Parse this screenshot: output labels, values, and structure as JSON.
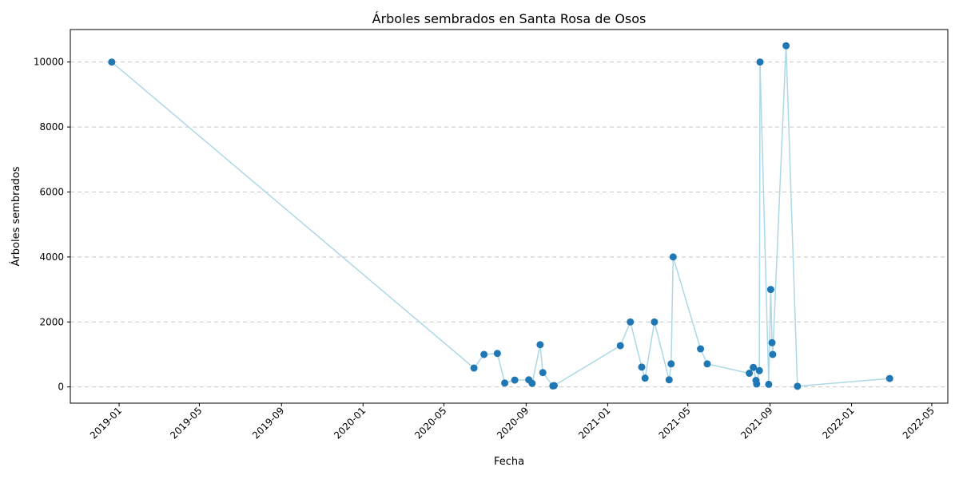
{
  "chart_data": {
    "type": "line",
    "title": "Árboles sembrados en Santa Rosa de Osos",
    "xlabel": "Fecha",
    "ylabel": "Árboles sembrados",
    "xlim": [
      "2018-10-20",
      "2022-05-25"
    ],
    "ylim": [
      -500,
      11000
    ],
    "x_ticks": [
      "2019-01",
      "2019-05",
      "2019-09",
      "2020-01",
      "2020-05",
      "2020-09",
      "2021-01",
      "2021-05",
      "2021-09",
      "2022-01",
      "2022-05"
    ],
    "y_ticks": [
      0,
      2000,
      4000,
      6000,
      8000,
      10000
    ],
    "grid": "y-dashed",
    "legend": "none",
    "colors": {
      "line": "#add8e6",
      "marker": "#1f77b4"
    },
    "points": [
      {
        "x": "2018-12-21",
        "y": 10000
      },
      {
        "x": "2020-06-15",
        "y": 580
      },
      {
        "x": "2020-06-30",
        "y": 1000
      },
      {
        "x": "2020-07-20",
        "y": 1030
      },
      {
        "x": "2020-07-31",
        "y": 120
      },
      {
        "x": "2020-08-15",
        "y": 210
      },
      {
        "x": "2020-09-05",
        "y": 220
      },
      {
        "x": "2020-09-10",
        "y": 110
      },
      {
        "x": "2020-09-22",
        "y": 1300
      },
      {
        "x": "2020-09-26",
        "y": 440
      },
      {
        "x": "2020-10-11",
        "y": 30
      },
      {
        "x": "2020-10-13",
        "y": 40
      },
      {
        "x": "2021-01-20",
        "y": 1270
      },
      {
        "x": "2021-02-04",
        "y": 2000
      },
      {
        "x": "2021-02-21",
        "y": 610
      },
      {
        "x": "2021-02-26",
        "y": 270
      },
      {
        "x": "2021-03-12",
        "y": 2000
      },
      {
        "x": "2021-04-03",
        "y": 220
      },
      {
        "x": "2021-04-06",
        "y": 710
      },
      {
        "x": "2021-04-09",
        "y": 4000
      },
      {
        "x": "2021-05-20",
        "y": 1170
      },
      {
        "x": "2021-05-30",
        "y": 710
      },
      {
        "x": "2021-08-01",
        "y": 420
      },
      {
        "x": "2021-08-07",
        "y": 600
      },
      {
        "x": "2021-08-11",
        "y": 200
      },
      {
        "x": "2021-08-12",
        "y": 90
      },
      {
        "x": "2021-08-16",
        "y": 500
      },
      {
        "x": "2021-08-17",
        "y": 10000
      },
      {
        "x": "2021-08-30",
        "y": 80
      },
      {
        "x": "2021-09-02",
        "y": 3000
      },
      {
        "x": "2021-09-04",
        "y": 1360
      },
      {
        "x": "2021-09-05",
        "y": 1000
      },
      {
        "x": "2021-09-25",
        "y": 10500
      },
      {
        "x": "2021-10-12",
        "y": 20
      },
      {
        "x": "2022-02-27",
        "y": 260
      }
    ]
  }
}
